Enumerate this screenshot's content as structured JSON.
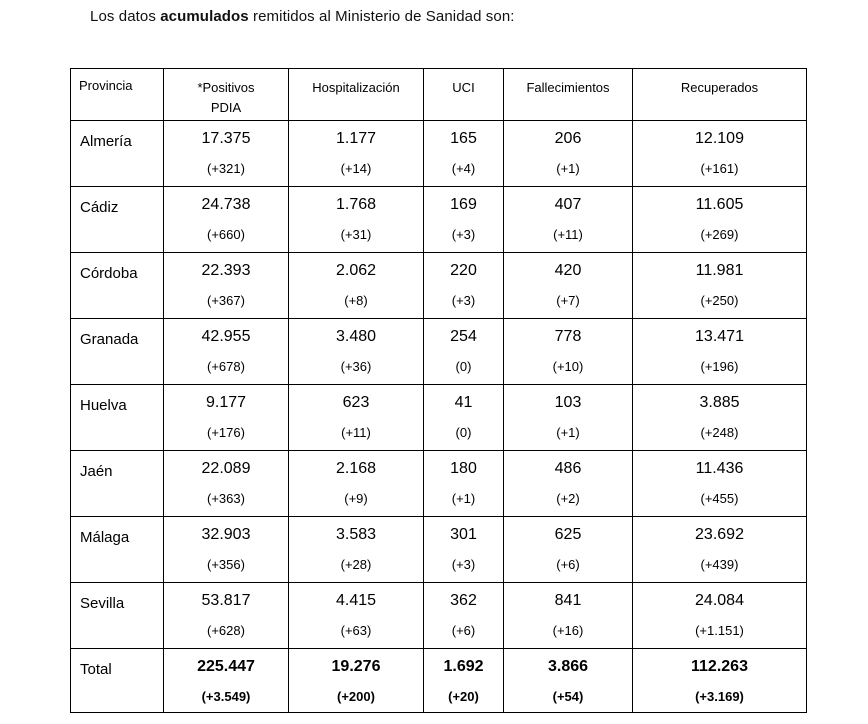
{
  "page": {
    "title_prefix": "Los datos ",
    "title_bold": "acumulados",
    "title_suffix": " remitidos al Ministerio de Sanidad son:"
  },
  "table": {
    "header": {
      "provincia": "Provincia",
      "positivos_line1": "*Positivos",
      "positivos_line2": "PDIA",
      "hospitalizacion": "Hospitalización",
      "uci": "UCI",
      "fallecimientos": "Fallecimientos",
      "recuperados": "Recuperados"
    },
    "rows": [
      {
        "provincia": "Almería",
        "positivos": {
          "value": "17.375",
          "delta": "(+321)"
        },
        "hospitalizacion": {
          "value": "1.177",
          "delta": "(+14)"
        },
        "uci": {
          "value": "165",
          "delta": "(+4)"
        },
        "fallecimientos": {
          "value": "206",
          "delta": "(+1)"
        },
        "recuperados": {
          "value": "12.109",
          "delta": "(+161)"
        }
      },
      {
        "provincia": "Cádiz",
        "positivos": {
          "value": "24.738",
          "delta": "(+660)"
        },
        "hospitalizacion": {
          "value": "1.768",
          "delta": "(+31)"
        },
        "uci": {
          "value": "169",
          "delta": "(+3)"
        },
        "fallecimientos": {
          "value": "407",
          "delta": "(+11)"
        },
        "recuperados": {
          "value": "11.605",
          "delta": "(+269)"
        }
      },
      {
        "provincia": "Córdoba",
        "positivos": {
          "value": "22.393",
          "delta": "(+367)"
        },
        "hospitalizacion": {
          "value": "2.062",
          "delta": "(+8)"
        },
        "uci": {
          "value": "220",
          "delta": "(+3)"
        },
        "fallecimientos": {
          "value": "420",
          "delta": "(+7)"
        },
        "recuperados": {
          "value": "11.981",
          "delta": "(+250)"
        }
      },
      {
        "provincia": "Granada",
        "positivos": {
          "value": "42.955",
          "delta": "(+678)"
        },
        "hospitalizacion": {
          "value": "3.480",
          "delta": "(+36)"
        },
        "uci": {
          "value": "254",
          "delta": "(0)"
        },
        "fallecimientos": {
          "value": "778",
          "delta": "(+10)"
        },
        "recuperados": {
          "value": "13.471",
          "delta": "(+196)"
        }
      },
      {
        "provincia": "Huelva",
        "positivos": {
          "value": "9.177",
          "delta": "(+176)"
        },
        "hospitalizacion": {
          "value": "623",
          "delta": "(+11)"
        },
        "uci": {
          "value": "41",
          "delta": "(0)"
        },
        "fallecimientos": {
          "value": "103",
          "delta": "(+1)"
        },
        "recuperados": {
          "value": "3.885",
          "delta": "(+248)"
        }
      },
      {
        "provincia": "Jaén",
        "positivos": {
          "value": "22.089",
          "delta": "(+363)"
        },
        "hospitalizacion": {
          "value": "2.168",
          "delta": "(+9)"
        },
        "uci": {
          "value": "180",
          "delta": "(+1)"
        },
        "fallecimientos": {
          "value": "486",
          "delta": "(+2)"
        },
        "recuperados": {
          "value": "11.436",
          "delta": "(+455)"
        }
      },
      {
        "provincia": "Málaga",
        "positivos": {
          "value": "32.903",
          "delta": "(+356)"
        },
        "hospitalizacion": {
          "value": "3.583",
          "delta": "(+28)"
        },
        "uci": {
          "value": "301",
          "delta": "(+3)"
        },
        "fallecimientos": {
          "value": "625",
          "delta": "(+6)"
        },
        "recuperados": {
          "value": "23.692",
          "delta": "(+439)"
        }
      },
      {
        "provincia": "Sevilla",
        "positivos": {
          "value": "53.817",
          "delta": "(+628)"
        },
        "hospitalizacion": {
          "value": "4.415",
          "delta": "(+63)"
        },
        "uci": {
          "value": "362",
          "delta": "(+6)"
        },
        "fallecimientos": {
          "value": "841",
          "delta": "(+16)"
        },
        "recuperados": {
          "value": "24.084",
          "delta": "(+1.151)"
        }
      }
    ],
    "total": {
      "provincia": "Total",
      "positivos": {
        "value": "225.447",
        "delta": "(+3.549)"
      },
      "hospitalizacion": {
        "value": "19.276",
        "delta": "(+200)"
      },
      "uci": {
        "value": "1.692",
        "delta": "(+20)"
      },
      "fallecimientos": {
        "value": "3.866",
        "delta": "(+54)"
      },
      "recuperados": {
        "value": "112.263",
        "delta": "(+3.169)"
      }
    }
  }
}
